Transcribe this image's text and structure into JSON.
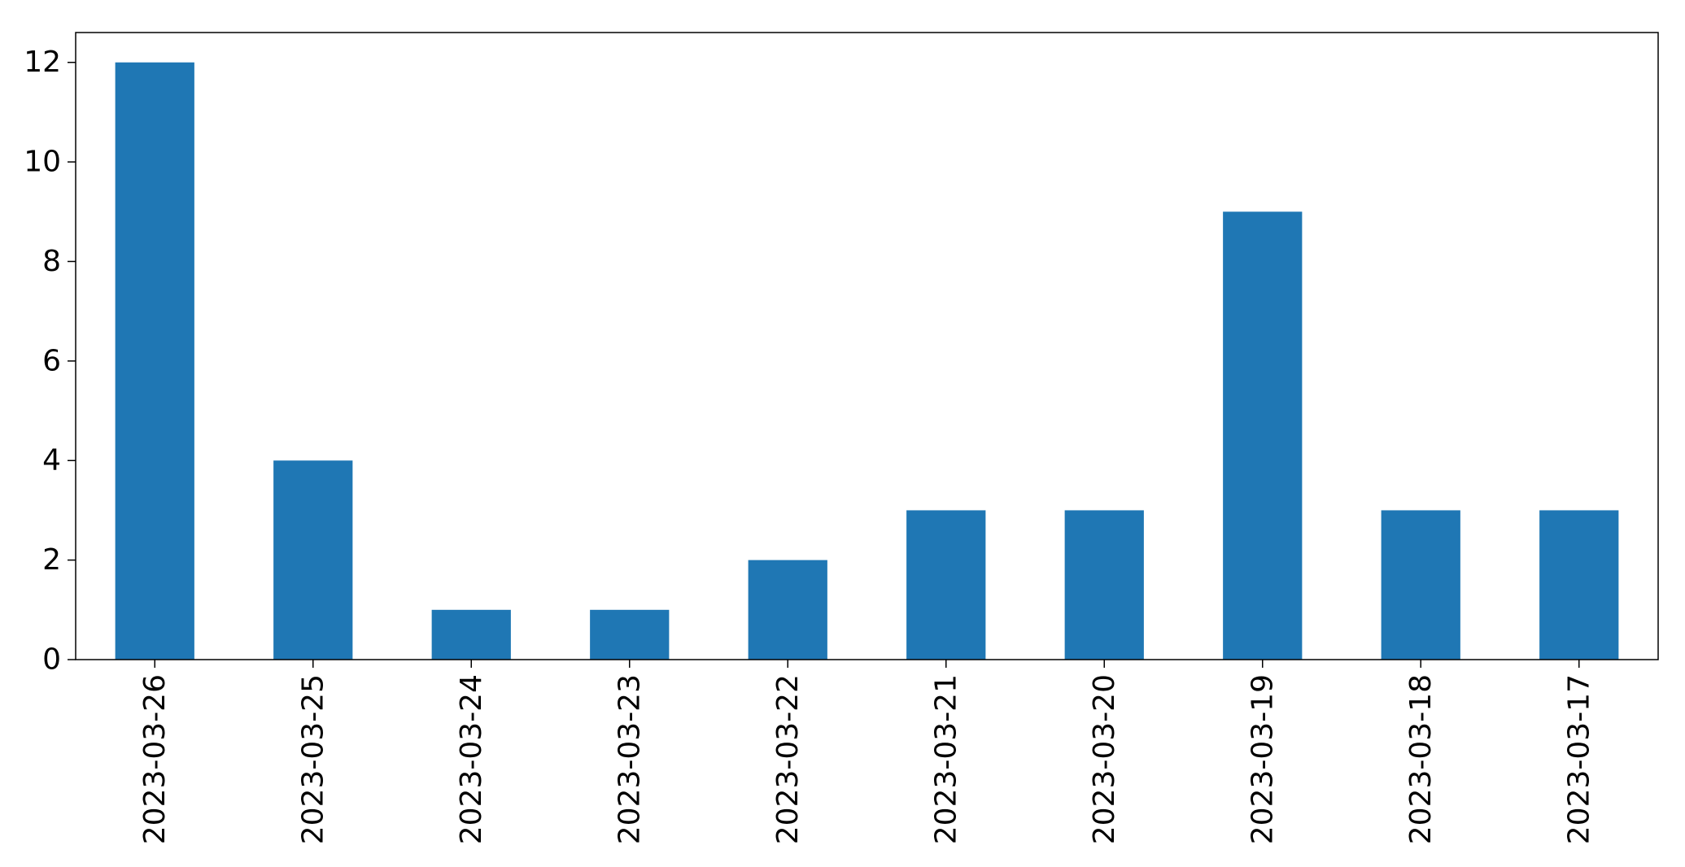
{
  "chart_data": {
    "type": "bar",
    "title": "",
    "xlabel": "",
    "ylabel": "",
    "categories": [
      "2023-03-26",
      "2023-03-25",
      "2023-03-24",
      "2023-03-23",
      "2023-03-22",
      "2023-03-21",
      "2023-03-20",
      "2023-03-19",
      "2023-03-18",
      "2023-03-17"
    ],
    "values": [
      12,
      4,
      1,
      1,
      2,
      3,
      3,
      9,
      3,
      3
    ],
    "ylim": [
      0,
      12.6
    ],
    "yticks": [
      0,
      2,
      4,
      6,
      8,
      10,
      12
    ],
    "grid": false,
    "legend": "none",
    "bar_color": "#1f77b4"
  }
}
